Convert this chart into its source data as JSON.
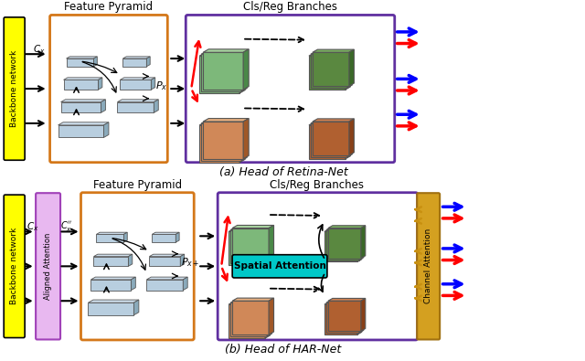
{
  "title_a": "(a) Head of Retina-Net",
  "title_b": "(b) Head of HAR-Net",
  "label_feature_pyramid": "Feature Pyramid",
  "label_cls_reg": "Cls/Reg Branches",
  "label_backbone": "Backbone network",
  "label_aligned": "Aligned Attention",
  "label_channel": "Channel Attention",
  "label_spatial": "Spatial Attention",
  "label_Cx": "$C_x$",
  "label_Cx_prime": "$C_x'$",
  "label_Cx_prime2": "$C_x''$",
  "label_Px": "$P_x$",
  "label_Px2": "$P_{x+}$",
  "yellow": "#FFFF00",
  "orange_border": "#D4781A",
  "purple_border": "#6030A0",
  "green_face": "#7DB87A",
  "green_top": "#A8D4A0",
  "green_side": "#4A8848",
  "green_dark_face": "#5A8840",
  "green_dark_top": "#7AB060",
  "green_dark_side": "#3A6828",
  "brown_face": "#D08858",
  "brown_top": "#E8B080",
  "brown_side": "#A05828",
  "brown_dark_face": "#B06030",
  "brown_dark_top": "#D08050",
  "brown_dark_side": "#884018",
  "fpn_face": "#B8CEDF",
  "fpn_top": "#D0E0EE",
  "fpn_side": "#8AAABB",
  "magenta_face": "#E8B8F0",
  "gold_face": "#D4A020",
  "cyan_face": "#00C8C8",
  "bg": "#FFFFFF"
}
